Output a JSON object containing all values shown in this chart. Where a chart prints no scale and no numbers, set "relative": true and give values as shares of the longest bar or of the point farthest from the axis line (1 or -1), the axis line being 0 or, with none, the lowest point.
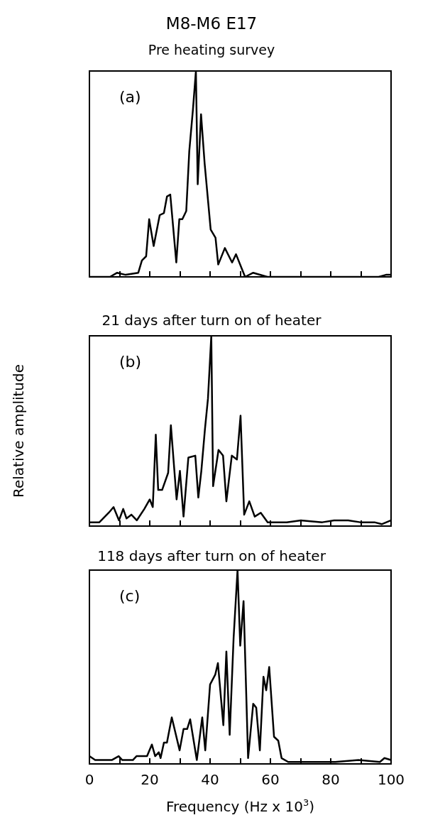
{
  "chart_data": [
    {
      "type": "line",
      "title": "M8-M6 E17",
      "subtitle": "Pre heating survey",
      "annotations": [
        "(a)"
      ],
      "relative": true,
      "tick_labels": false,
      "xlim": [
        0,
        100
      ],
      "xticks": [
        0,
        {
          "value": 10,
          "label": null
        },
        20,
        {
          "value": 30,
          "label": null
        },
        40,
        {
          "value": 50,
          "label": null
        },
        60,
        {
          "value": 70,
          "label": null
        },
        80,
        {
          "value": 90,
          "label": null
        },
        100
      ],
      "grid": false,
      "marker": "none",
      "line_style": "solid",
      "x": [
        0,
        6.8,
        9.2,
        12,
        16.2,
        17.4,
        18.8,
        19.8,
        21.3,
        23.3,
        24.7,
        25.7,
        26.8,
        28.8,
        29.8,
        30.8,
        32.1,
        33.1,
        34.3,
        35.3,
        35.9,
        37.0,
        38.2,
        40.2,
        41.8,
        42.7,
        44.9,
        47.3,
        48.6,
        51.6,
        54.3,
        59,
        64.5,
        72.4,
        80.2,
        88.1,
        95.9,
        98.3,
        100
      ],
      "series": [
        {
          "color": "#000000",
          "values": [
            0,
            0,
            0.02,
            0.01,
            0.02,
            0.08,
            0.1,
            0.28,
            0.15,
            0.3,
            0.31,
            0.39,
            0.4,
            0.07,
            0.28,
            0.28,
            0.32,
            0.61,
            0.81,
            1,
            0.45,
            0.79,
            0.55,
            0.23,
            0.19,
            0.06,
            0.14,
            0.07,
            0.11,
            0,
            0.02,
            0,
            0,
            0,
            0,
            0,
            0,
            0.01,
            0.01
          ]
        }
      ]
    },
    {
      "type": "line",
      "title": "21 days after turn on of heater",
      "ylabel": "Relative amplitude",
      "annotations": [
        "(b)"
      ],
      "relative": true,
      "tick_labels": false,
      "xlim": [
        0,
        100
      ],
      "xticks": [
        0,
        {
          "value": 10,
          "label": null
        },
        20,
        {
          "value": 30,
          "label": null
        },
        40,
        {
          "value": 50,
          "label": null
        },
        60,
        {
          "value": 70,
          "label": null
        },
        80,
        {
          "value": 90,
          "label": null
        },
        100
      ],
      "grid": false,
      "marker": "none",
      "line_style": "solid",
      "x": [
        0,
        3.3,
        6.4,
        8.0,
        9.8,
        11.2,
        12.3,
        13.9,
        15.7,
        18.2,
        20.0,
        21.0,
        22.0,
        22.8,
        24.1,
        26.1,
        27.0,
        28.9,
        30.0,
        31.2,
        32.8,
        35.1,
        36.1,
        37.1,
        38.3,
        39.3,
        40.4,
        41.0,
        42.8,
        44.3,
        45.4,
        47.2,
        48.9,
        50.1,
        51.3,
        53.0,
        54.8,
        56.8,
        59.1,
        65.4,
        70.1,
        77.2,
        81.1,
        85.8,
        89.8,
        94.5,
        96.9,
        100
      ],
      "series": [
        {
          "color": "#000000",
          "values": [
            0.02,
            0.02,
            0.07,
            0.1,
            0.03,
            0.09,
            0.04,
            0.06,
            0.03,
            0.09,
            0.14,
            0.1,
            0.48,
            0.19,
            0.19,
            0.28,
            0.53,
            0.14,
            0.29,
            0.05,
            0.36,
            0.37,
            0.15,
            0.29,
            0.51,
            0.67,
            1,
            0.21,
            0.4,
            0.37,
            0.13,
            0.37,
            0.35,
            0.58,
            0.06,
            0.13,
            0.05,
            0.07,
            0.02,
            0.02,
            0.03,
            0.02,
            0.03,
            0.03,
            0.02,
            0.02,
            0.01,
            0.03
          ]
        }
      ]
    },
    {
      "type": "line",
      "title": "118 days after turn on of heater",
      "xlabel": "Frequency (Hz x 10$^{3}$)",
      "annotations": [
        "(c)"
      ],
      "relative": true,
      "tick_labels": "x",
      "xlim": [
        0,
        100
      ],
      "xticks": [
        0,
        {
          "value": 10,
          "label": null
        },
        20,
        {
          "value": 30,
          "label": null
        },
        40,
        {
          "value": 50,
          "label": null
        },
        60,
        {
          "value": 70,
          "label": null
        },
        80,
        {
          "value": 90,
          "label": null
        },
        100
      ],
      "grid": false,
      "marker": "none",
      "line_style": "solid",
      "x": [
        0,
        1.9,
        7.4,
        9.7,
        10.9,
        14.4,
        15.6,
        19.1,
        20.7,
        21.8,
        23.0,
        23.6,
        24.7,
        25.7,
        27.3,
        29.9,
        31.2,
        32.4,
        33.4,
        35.6,
        37.4,
        38.4,
        40.0,
        41.7,
        42.6,
        44.4,
        45.4,
        46.5,
        47.8,
        49.1,
        50.0,
        51.1,
        52.6,
        54.3,
        55.3,
        56.5,
        57.7,
        58.6,
        59.6,
        61.2,
        62.6,
        63.7,
        65.9,
        73.7,
        81.5,
        89.2,
        96.3,
        97.8,
        100
      ],
      "series": [
        {
          "color": "#000000",
          "values": [
            0.04,
            0.02,
            0.02,
            0.04,
            0.02,
            0.02,
            0.04,
            0.04,
            0.1,
            0.04,
            0.06,
            0.03,
            0.11,
            0.11,
            0.24,
            0.07,
            0.18,
            0.18,
            0.23,
            0.02,
            0.24,
            0.07,
            0.41,
            0.46,
            0.52,
            0.2,
            0.58,
            0.15,
            0.65,
            1,
            0.61,
            0.84,
            0.03,
            0.31,
            0.29,
            0.07,
            0.45,
            0.38,
            0.5,
            0.14,
            0.12,
            0.03,
            0.01,
            0.01,
            0.01,
            0.02,
            0.01,
            0.03,
            0.02
          ]
        }
      ]
    }
  ]
}
